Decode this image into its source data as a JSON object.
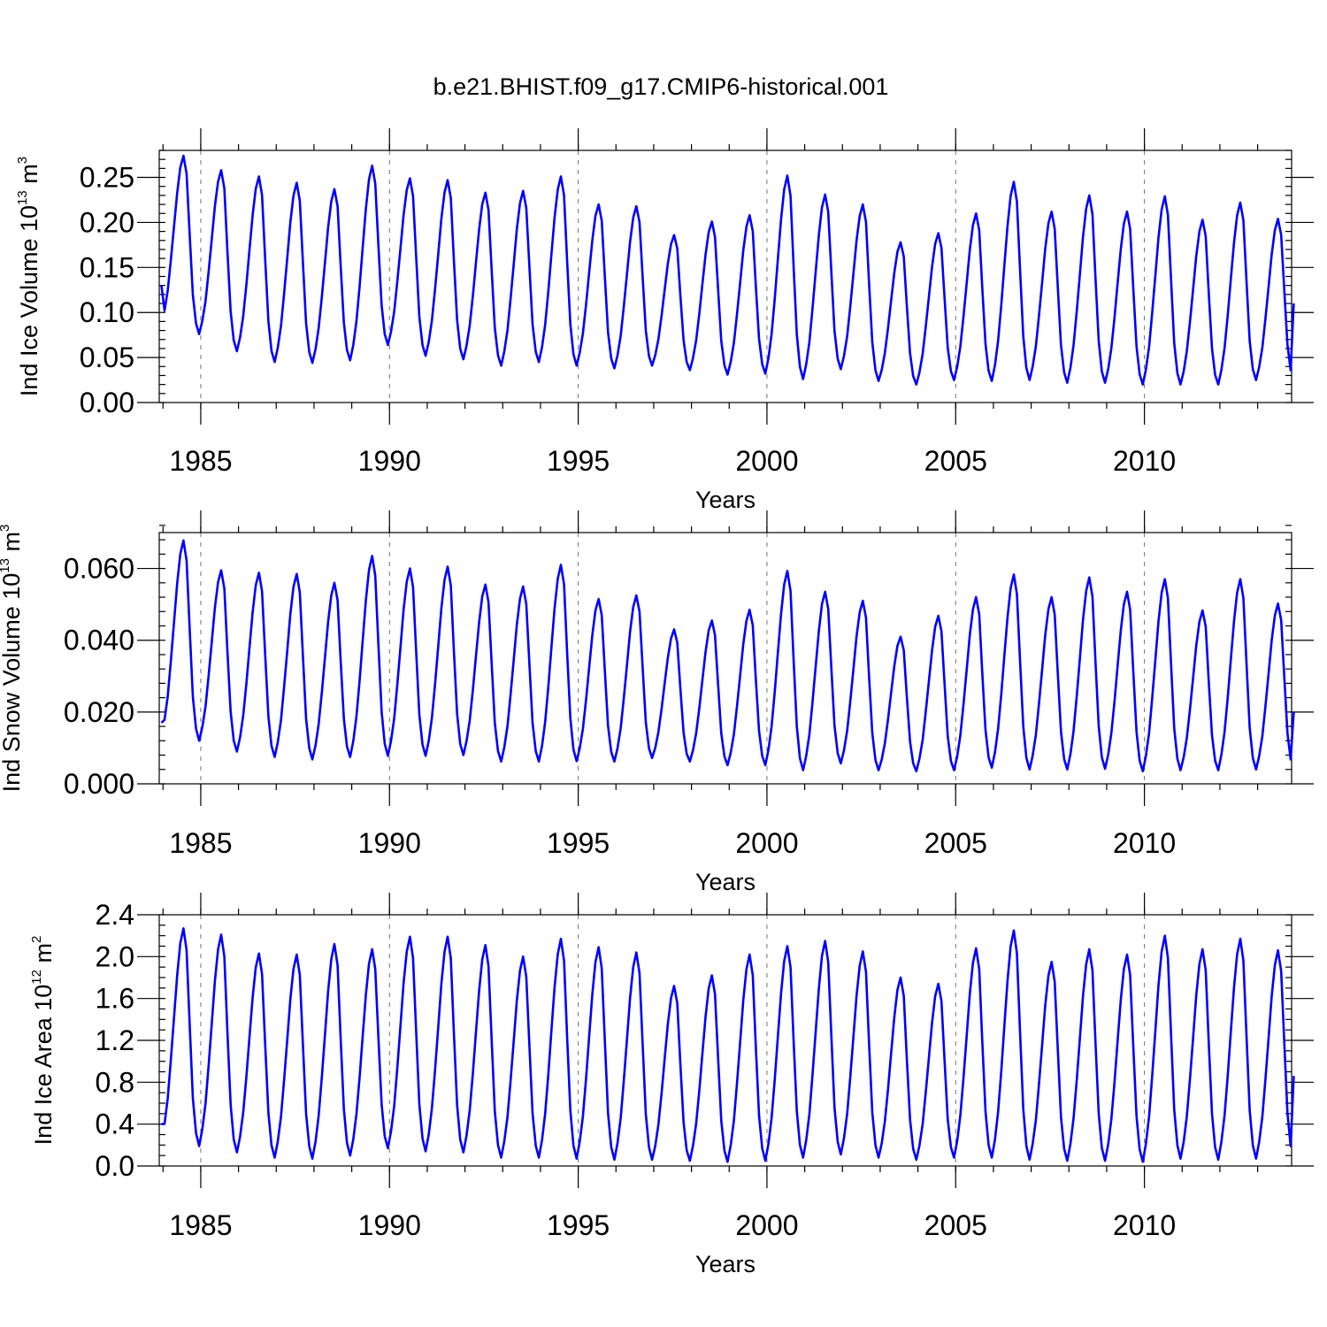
{
  "title": "b.e21.BHIST.f09_g17.CMIP6-historical.001",
  "chart_data": [
    {
      "type": "line",
      "title": "b.e21.BHIST.f09_g17.CMIP6-historical.001",
      "xlabel": "Years",
      "ylabel": "Ind Ice Volume 10",
      "ylabel_exp": "13",
      "ylabel_unit": " m",
      "ylabel_unit_exp": "3",
      "xlim": [
        1983.9,
        2013.9
      ],
      "ylim": [
        0,
        0.28
      ],
      "x_ticks": [
        1985,
        1990,
        1995,
        2000,
        2005,
        2010
      ],
      "x_tick_labels": [
        "1985",
        "1990",
        "1995",
        "2000",
        "2005",
        "2010"
      ],
      "y_ticks": [
        0,
        0.05,
        0.1,
        0.15,
        0.2,
        0.25
      ],
      "y_tick_labels": [
        "0.00",
        "0.05",
        "0.10",
        "0.15",
        "0.20",
        "0.25"
      ],
      "y_minor_step": 0.01,
      "grid": "dashed verticals at major x ticks",
      "start_year": 1983.958,
      "step": 0.08333,
      "series": [
        {
          "name": "Ind Ice Volume",
          "color": "#0000ff",
          "annual_max": [
            0.274,
            0.258,
            0.251,
            0.244,
            0.237,
            0.263,
            0.249,
            0.247,
            0.233,
            0.235,
            0.251,
            0.22,
            0.218,
            0.186,
            0.201,
            0.208,
            0.252,
            0.231,
            0.22,
            0.178,
            0.188,
            0.21,
            0.245,
            0.212,
            0.23,
            0.212,
            0.229,
            0.203,
            0.222,
            0.204
          ],
          "annual_min": [
            0.087,
            0.076,
            0.057,
            0.045,
            0.044,
            0.047,
            0.064,
            0.052,
            0.048,
            0.041,
            0.045,
            0.041,
            0.038,
            0.041,
            0.036,
            0.031,
            0.032,
            0.026,
            0.037,
            0.024,
            0.02,
            0.025,
            0.024,
            0.025,
            0.022,
            0.022,
            0.02,
            0.02,
            0.02,
            0.025
          ],
          "start_value": 0.13,
          "end_value": 0.11
        }
      ]
    },
    {
      "type": "line",
      "xlabel": "Years",
      "ylabel": "Ind Snow Volume 10",
      "ylabel_exp": "13",
      "ylabel_unit": " m",
      "ylabel_unit_exp": "3",
      "xlim": [
        1983.9,
        2013.9
      ],
      "ylim": [
        0,
        0.07
      ],
      "x_ticks": [
        1985,
        1990,
        1995,
        2000,
        2005,
        2010
      ],
      "x_tick_labels": [
        "1985",
        "1990",
        "1995",
        "2000",
        "2005",
        "2010"
      ],
      "y_ticks": [
        0,
        0.02,
        0.04,
        0.06
      ],
      "y_tick_labels": [
        "0.000",
        "0.020",
        "0.040",
        "0.060"
      ],
      "y_minor_step": 0.004,
      "grid": "dashed verticals at major x ticks",
      "start_year": 1983.958,
      "step": 0.08333,
      "series": [
        {
          "name": "Ind Snow Volume",
          "color": "#0000ff",
          "annual_max": [
            0.0678,
            0.0595,
            0.0588,
            0.0585,
            0.056,
            0.0635,
            0.06,
            0.0605,
            0.0555,
            0.055,
            0.061,
            0.0515,
            0.0525,
            0.043,
            0.0455,
            0.0485,
            0.0593,
            0.0535,
            0.051,
            0.041,
            0.0468,
            0.052,
            0.0583,
            0.052,
            0.0575,
            0.0535,
            0.057,
            0.0483,
            0.057,
            0.0502
          ],
          "annual_min": [
            0.0135,
            0.012,
            0.009,
            0.0075,
            0.0068,
            0.0075,
            0.0078,
            0.0078,
            0.008,
            0.0062,
            0.0062,
            0.0063,
            0.0062,
            0.0072,
            0.0062,
            0.0052,
            0.0052,
            0.0038,
            0.0057,
            0.0038,
            0.0035,
            0.0038,
            0.0045,
            0.004,
            0.004,
            0.0042,
            0.0035,
            0.0038,
            0.0038,
            0.004
          ],
          "start_value": 0.017,
          "end_value": 0.02
        }
      ]
    },
    {
      "type": "line",
      "xlabel": "Years",
      "ylabel": "Ind Ice Area 10",
      "ylabel_exp": "12",
      "ylabel_unit": " m",
      "ylabel_unit_exp": "2",
      "xlim": [
        1983.9,
        2013.9
      ],
      "ylim": [
        0,
        2.4
      ],
      "x_ticks": [
        1985,
        1990,
        1995,
        2000,
        2005,
        2010
      ],
      "x_tick_labels": [
        "1985",
        "1990",
        "1995",
        "2000",
        "2005",
        "2010"
      ],
      "y_ticks": [
        0,
        0.4,
        0.8,
        1.2,
        1.6,
        2.0,
        2.4
      ],
      "y_tick_labels": [
        "0.0",
        "0.4",
        "0.8",
        "1.2",
        "1.6",
        "2.0",
        "2.4"
      ],
      "y_minor_step": 0.1,
      "grid": "dashed verticals at major x ticks",
      "start_year": 1983.958,
      "step": 0.08333,
      "series": [
        {
          "name": "Ind Ice Area",
          "color": "#0000ff",
          "annual_max": [
            2.27,
            2.21,
            2.03,
            2.02,
            2.12,
            2.07,
            2.19,
            2.19,
            2.11,
            2.0,
            2.17,
            2.09,
            2.04,
            1.72,
            1.82,
            2.02,
            2.1,
            2.15,
            2.05,
            1.8,
            1.74,
            2.08,
            2.25,
            1.95,
            2.07,
            2.02,
            2.2,
            2.07,
            2.17,
            2.06
          ],
          "annual_min": [
            0.24,
            0.19,
            0.13,
            0.08,
            0.07,
            0.1,
            0.17,
            0.14,
            0.13,
            0.08,
            0.08,
            0.07,
            0.06,
            0.06,
            0.05,
            0.04,
            0.05,
            0.08,
            0.11,
            0.08,
            0.06,
            0.08,
            0.08,
            0.06,
            0.05,
            0.05,
            0.04,
            0.07,
            0.06,
            0.07
          ],
          "start_value": 0.4,
          "end_value": 0.86
        }
      ]
    }
  ],
  "colors": {
    "series": "#0000ff",
    "axes": "#000000",
    "background": "#ffffff"
  }
}
